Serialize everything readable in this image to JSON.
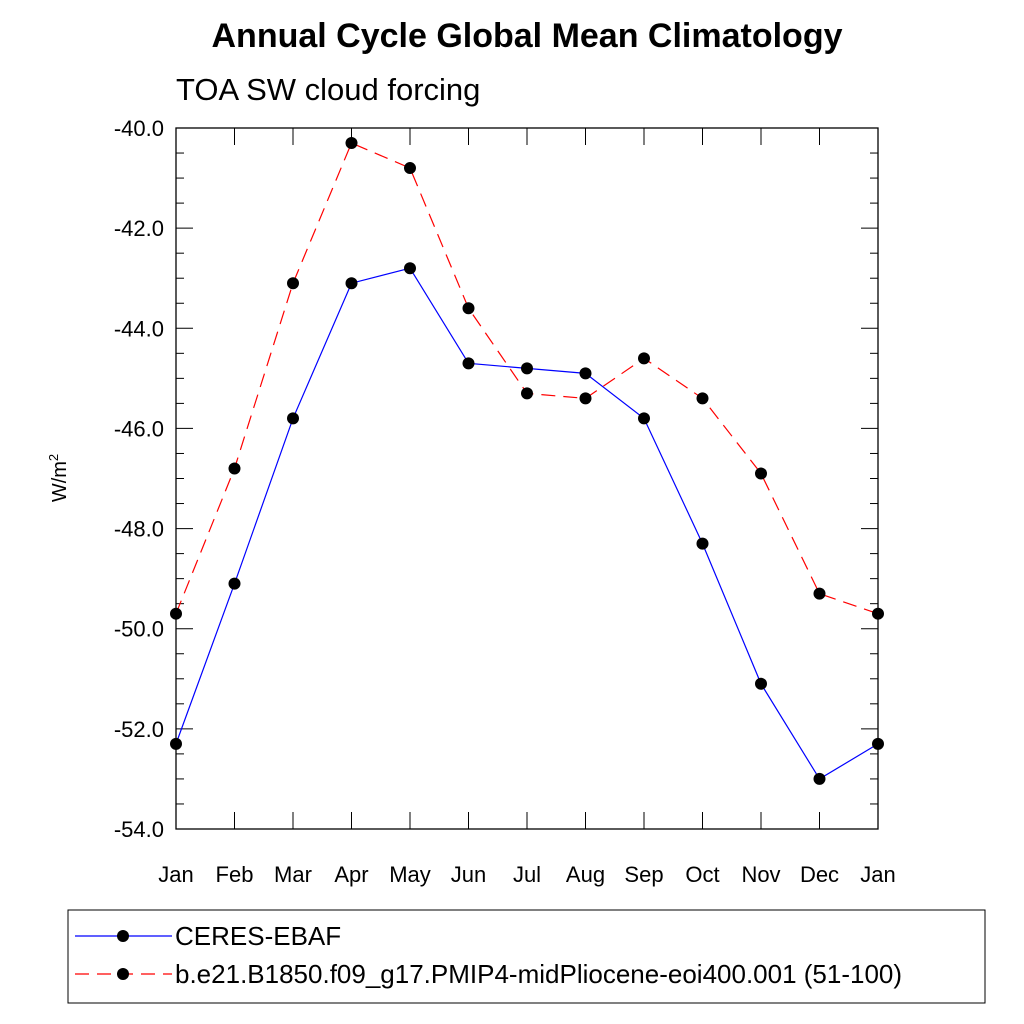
{
  "chart_data": {
    "type": "line",
    "title": "Annual Cycle Global Mean Climatology",
    "subtitle": "TOA SW cloud forcing",
    "xlabel": "",
    "ylabel": "W/m",
    "ylabel_superscript": "2",
    "ylim": [
      -54.0,
      -40.0
    ],
    "yticks": [
      -40.0,
      -42.0,
      -44.0,
      -46.0,
      -48.0,
      -50.0,
      -52.0,
      -54.0
    ],
    "ytick_labels": [
      "-40.0",
      "-42.0",
      "-44.0",
      "-46.0",
      "-48.0",
      "-50.0",
      "-52.0",
      "-54.0"
    ],
    "categories": [
      "Jan",
      "Feb",
      "Mar",
      "Apr",
      "May",
      "Jun",
      "Jul",
      "Aug",
      "Sep",
      "Oct",
      "Nov",
      "Dec",
      "Jan"
    ],
    "grid": false,
    "legend_position": "bottom",
    "series": [
      {
        "name": "CERES-EBAF",
        "color": "#0000ff",
        "line_style": "solid",
        "values": [
          -52.3,
          -49.1,
          -45.8,
          -43.1,
          -42.8,
          -44.7,
          -44.8,
          -44.9,
          -45.8,
          -48.3,
          -51.1,
          -53.0,
          -52.3
        ]
      },
      {
        "name": "b.e21.B1850.f09_g17.PMIP4-midPliocene-eoi400.001 (51-100)",
        "color": "#ff0000",
        "line_style": "dashed",
        "values": [
          -49.7,
          -46.8,
          -43.1,
          -40.3,
          -40.8,
          -43.6,
          -45.3,
          -45.4,
          -44.6,
          -45.4,
          -46.9,
          -49.3,
          -49.7
        ]
      }
    ]
  }
}
